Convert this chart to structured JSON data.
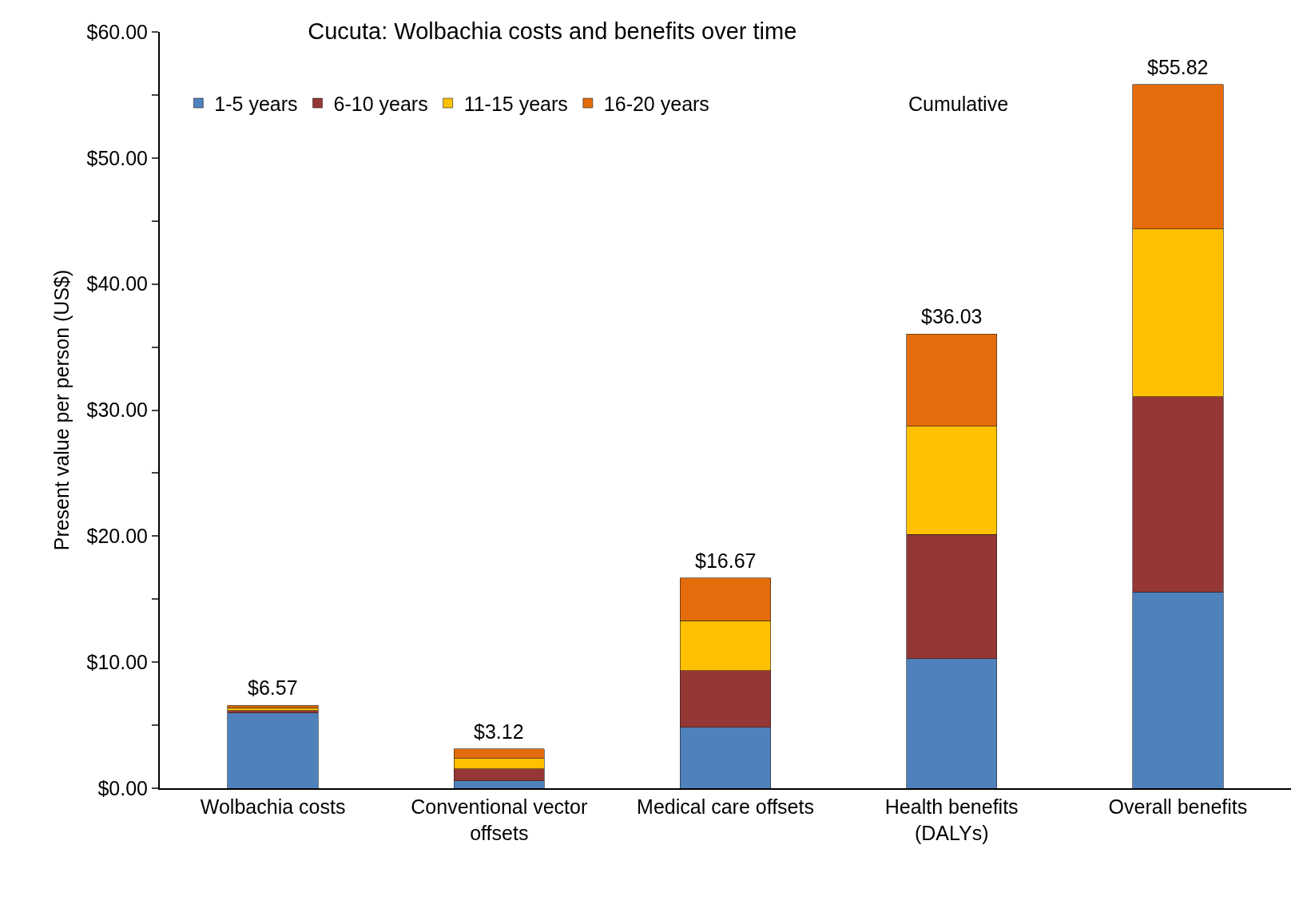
{
  "chart_data": {
    "type": "bar",
    "title": "Cucuta: Wolbachia costs and benefits over time",
    "ylabel": "Present value per person (US$)",
    "categories": [
      "Wolbachia costs",
      "Conventional vector offsets",
      "Medical care offsets",
      "Health benefits (DALYs)",
      "Overall benefits"
    ],
    "stacked": true,
    "legend": "top left",
    "ylim": [
      0,
      60
    ],
    "yticks": [
      {
        "value": 0,
        "label": "$0.00"
      },
      {
        "value": 5,
        "label": null
      },
      {
        "value": 10,
        "label": "$10.00"
      },
      {
        "value": 15,
        "label": null
      },
      {
        "value": 20,
        "label": "$20.00"
      },
      {
        "value": 25,
        "label": null
      },
      {
        "value": 30,
        "label": "$30.00"
      },
      {
        "value": 35,
        "label": null
      },
      {
        "value": 40,
        "label": "$40.00"
      },
      {
        "value": 45,
        "label": null
      },
      {
        "value": 50,
        "label": "$50.00"
      },
      {
        "value": 55,
        "label": null
      },
      {
        "value": 60,
        "label": "$60.00"
      }
    ],
    "series": [
      {
        "name": "1-5 years",
        "color": "#4f81bd",
        "values": [
          5.97,
          0.6,
          4.83,
          10.27,
          15.57
        ]
      },
      {
        "name": "6-10 years",
        "color": "#953735",
        "values": [
          0.2,
          0.95,
          4.5,
          9.86,
          15.5
        ]
      },
      {
        "name": "11-15 years",
        "color": "#ffc000",
        "values": [
          0.2,
          0.8,
          3.96,
          8.59,
          13.29
        ]
      },
      {
        "name": "16-20 years",
        "color": "#e46c0a",
        "values": [
          0.2,
          0.77,
          3.38,
          7.31,
          11.46
        ]
      }
    ],
    "totals": [
      "$6.57",
      "$3.12",
      "$16.67",
      "$36.03",
      "$55.82"
    ],
    "annotations": [
      "Cumulative"
    ]
  }
}
